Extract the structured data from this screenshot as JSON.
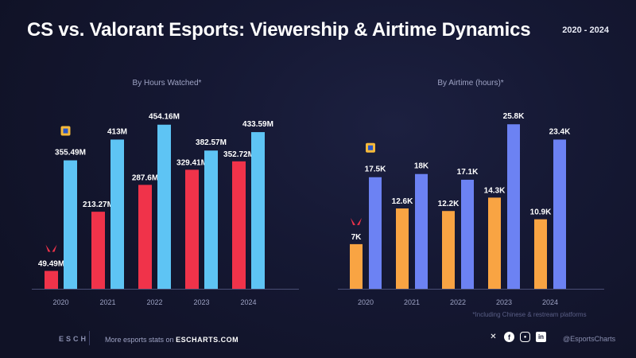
{
  "header": {
    "title": "CS vs. Valorant Esports: Viewership & Airtime Dynamics",
    "range": "2020 - 2024"
  },
  "chart_data": [
    {
      "type": "bar",
      "title": "By Hours Watched*",
      "categories": [
        "2020",
        "2021",
        "2022",
        "2023",
        "2024"
      ],
      "series": [
        {
          "values": [
            49.49,
            213.27,
            287.6,
            329.41,
            352.72
          ],
          "labels": [
            "49.49M",
            "213.27M",
            "287.6M",
            "329.41M",
            "352.72M"
          ],
          "color": "#f0334a",
          "icon": "valorant-logo-icon"
        },
        {
          "values": [
            355.49,
            413,
            454.16,
            382.57,
            433.59
          ],
          "labels": [
            "355.49M",
            "413M",
            "454.16M",
            "382.57M",
            "433.59M"
          ],
          "color": "#5ec4f4",
          "icon": "cs-logo-icon"
        }
      ],
      "ylim": [
        0,
        480
      ]
    },
    {
      "type": "bar",
      "title": "By Airtime (hours)*",
      "categories": [
        "2020",
        "2021",
        "2022",
        "2023",
        "2024"
      ],
      "series": [
        {
          "values": [
            7,
            12.6,
            12.2,
            14.3,
            10.9
          ],
          "labels": [
            "7K",
            "12.6K",
            "12.2K",
            "14.3K",
            "10.9K"
          ],
          "color": "#f9a443",
          "icon": "valorant-logo-icon"
        },
        {
          "values": [
            17.5,
            18,
            17.1,
            25.8,
            23.4
          ],
          "labels": [
            "17.5K",
            "18K",
            "17.1K",
            "25.8K",
            "23.4K"
          ],
          "color": "#6c82f3",
          "icon": "cs-logo-icon"
        }
      ],
      "ylim": [
        0,
        27.2
      ]
    }
  ],
  "note": "*Including Chinese & restream platforms",
  "footer": {
    "brand": "ESCH",
    "text": "More esports stats on",
    "site": "ESCHARTS.COM",
    "handle": "@EsportsCharts",
    "socials": [
      "x-icon",
      "facebook-icon",
      "instagram-icon",
      "linkedin-icon"
    ]
  }
}
